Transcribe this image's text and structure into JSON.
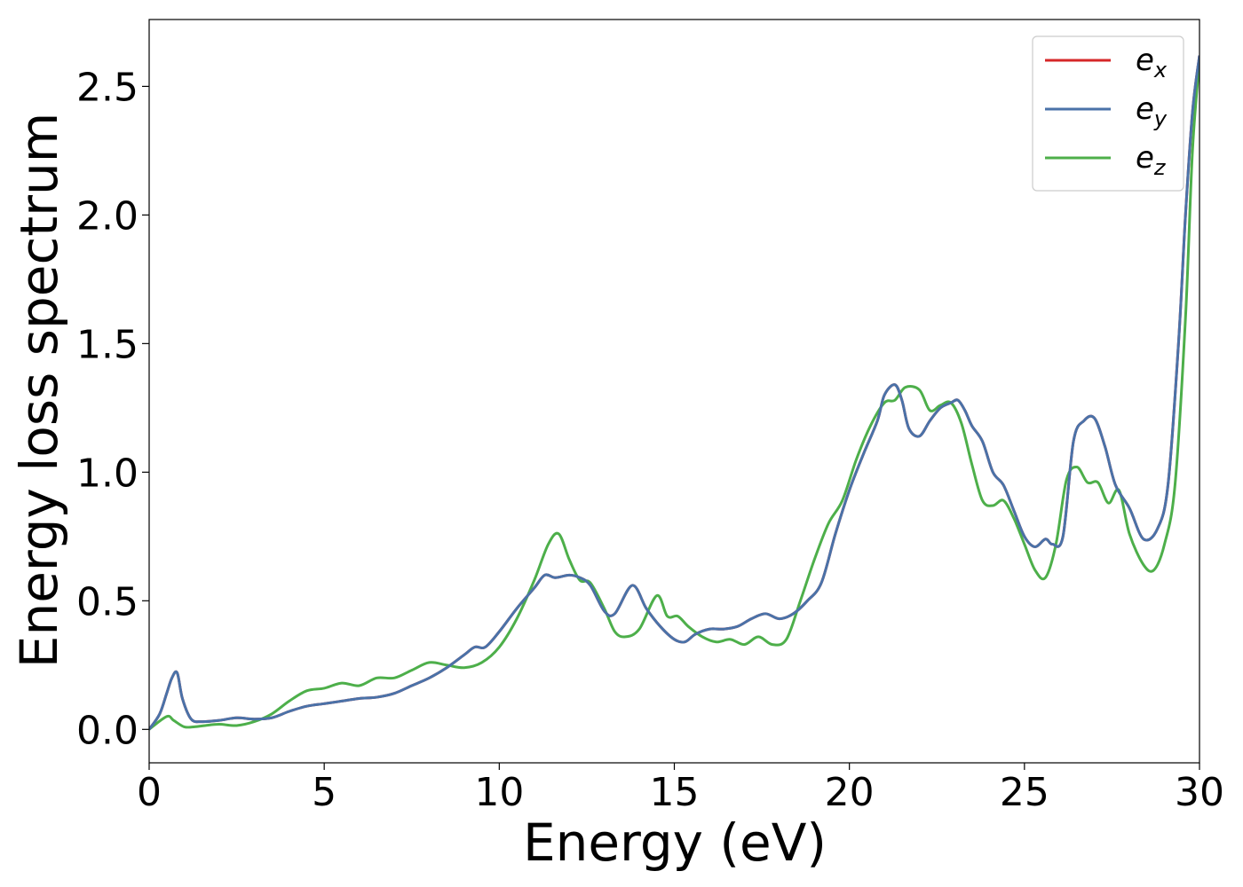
{
  "chart_data": {
    "type": "line",
    "xlabel": "Energy (eV)",
    "ylabel": "Energy loss spectrum",
    "xlim": [
      0,
      30
    ],
    "ylim": [
      -0.13,
      2.76
    ],
    "xticks": [
      0,
      5,
      10,
      15,
      20,
      25,
      30
    ],
    "xtick_labels": [
      "0",
      "5",
      "10",
      "15",
      "20",
      "25",
      "30"
    ],
    "yticks": [
      0.0,
      0.5,
      1.0,
      1.5,
      2.0,
      2.5
    ],
    "ytick_labels": [
      "0.0",
      "0.5",
      "1.0",
      "1.5",
      "2.0",
      "2.5"
    ],
    "grid": false,
    "legend_position": "top-right",
    "series": [
      {
        "name": "e_x",
        "legend_main": "e",
        "legend_sub": "x",
        "color": "#d62728",
        "x": [
          0,
          0.3,
          0.5,
          0.65,
          0.8,
          0.95,
          1.2,
          1.5,
          2,
          2.5,
          3,
          3.5,
          4,
          4.5,
          5,
          5.5,
          6,
          6.5,
          7,
          7.5,
          8,
          8.5,
          9,
          9.3,
          9.6,
          10,
          10.5,
          11,
          11.3,
          11.6,
          12,
          12.3,
          12.6,
          13,
          13.3,
          13.8,
          14.2,
          14.6,
          15,
          15.3,
          15.6,
          16,
          16.4,
          16.8,
          17.2,
          17.6,
          18,
          18.4,
          18.8,
          19.2,
          19.6,
          20,
          20.4,
          20.8,
          21,
          21.3,
          21.5,
          21.7,
          22,
          22.3,
          22.6,
          22.9,
          23.1,
          23.3,
          23.5,
          23.8,
          24.1,
          24.4,
          24.7,
          25,
          25.3,
          25.6,
          25.8,
          26.1,
          26.4,
          26.7,
          27,
          27.3,
          27.6,
          28,
          28.4,
          28.8,
          29.1,
          29.4,
          29.6,
          29.8,
          30
        ],
        "values": [
          0.0,
          0.06,
          0.14,
          0.2,
          0.22,
          0.12,
          0.04,
          0.03,
          0.035,
          0.045,
          0.04,
          0.045,
          0.07,
          0.09,
          0.1,
          0.11,
          0.12,
          0.125,
          0.14,
          0.17,
          0.2,
          0.24,
          0.29,
          0.32,
          0.32,
          0.38,
          0.47,
          0.55,
          0.6,
          0.59,
          0.6,
          0.59,
          0.56,
          0.46,
          0.45,
          0.56,
          0.47,
          0.4,
          0.35,
          0.34,
          0.37,
          0.39,
          0.39,
          0.4,
          0.43,
          0.45,
          0.43,
          0.45,
          0.5,
          0.57,
          0.76,
          0.93,
          1.07,
          1.2,
          1.3,
          1.34,
          1.28,
          1.17,
          1.14,
          1.2,
          1.25,
          1.27,
          1.28,
          1.24,
          1.18,
          1.12,
          1.0,
          0.95,
          0.85,
          0.75,
          0.71,
          0.74,
          0.72,
          0.75,
          1.12,
          1.2,
          1.21,
          1.1,
          0.95,
          0.86,
          0.74,
          0.78,
          0.95,
          1.5,
          2.0,
          2.4,
          2.62
        ]
      },
      {
        "name": "e_y",
        "legend_main": "e",
        "legend_sub": "y",
        "color": "#4a72a8",
        "x": [
          0,
          0.3,
          0.5,
          0.65,
          0.8,
          0.95,
          1.2,
          1.5,
          2,
          2.5,
          3,
          3.5,
          4,
          4.5,
          5,
          5.5,
          6,
          6.5,
          7,
          7.5,
          8,
          8.5,
          9,
          9.3,
          9.6,
          10,
          10.5,
          11,
          11.3,
          11.6,
          12,
          12.3,
          12.6,
          13,
          13.3,
          13.8,
          14.2,
          14.6,
          15,
          15.3,
          15.6,
          16,
          16.4,
          16.8,
          17.2,
          17.6,
          18,
          18.4,
          18.8,
          19.2,
          19.6,
          20,
          20.4,
          20.8,
          21,
          21.3,
          21.5,
          21.7,
          22,
          22.3,
          22.6,
          22.9,
          23.1,
          23.3,
          23.5,
          23.8,
          24.1,
          24.4,
          24.7,
          25,
          25.3,
          25.6,
          25.8,
          26.1,
          26.4,
          26.7,
          27,
          27.3,
          27.6,
          28,
          28.4,
          28.8,
          29.1,
          29.4,
          29.6,
          29.8,
          30
        ],
        "values": [
          0.0,
          0.06,
          0.14,
          0.2,
          0.22,
          0.12,
          0.04,
          0.03,
          0.035,
          0.045,
          0.04,
          0.045,
          0.07,
          0.09,
          0.1,
          0.11,
          0.12,
          0.125,
          0.14,
          0.17,
          0.2,
          0.24,
          0.29,
          0.32,
          0.32,
          0.38,
          0.47,
          0.55,
          0.6,
          0.59,
          0.6,
          0.59,
          0.56,
          0.46,
          0.45,
          0.56,
          0.47,
          0.4,
          0.35,
          0.34,
          0.37,
          0.39,
          0.39,
          0.4,
          0.43,
          0.45,
          0.43,
          0.45,
          0.5,
          0.57,
          0.76,
          0.93,
          1.07,
          1.2,
          1.3,
          1.34,
          1.28,
          1.17,
          1.14,
          1.2,
          1.25,
          1.27,
          1.28,
          1.24,
          1.18,
          1.12,
          1.0,
          0.95,
          0.85,
          0.75,
          0.71,
          0.74,
          0.72,
          0.75,
          1.12,
          1.2,
          1.21,
          1.1,
          0.95,
          0.86,
          0.74,
          0.78,
          0.95,
          1.5,
          2.0,
          2.4,
          2.62
        ]
      },
      {
        "name": "e_z",
        "legend_main": "e",
        "legend_sub": "z",
        "color": "#4daf4a",
        "x": [
          0,
          0.5,
          0.7,
          1.0,
          1.3,
          1.6,
          2.0,
          2.5,
          3,
          3.5,
          4,
          4.5,
          5,
          5.5,
          6,
          6.5,
          7,
          7.5,
          8,
          8.5,
          9,
          9.5,
          10,
          10.5,
          11,
          11.4,
          11.7,
          12,
          12.3,
          12.6,
          13,
          13.3,
          13.6,
          14.0,
          14.5,
          14.8,
          15.1,
          15.4,
          15.8,
          16.2,
          16.6,
          17,
          17.4,
          17.8,
          18.2,
          18.6,
          19,
          19.4,
          19.8,
          20.2,
          20.6,
          21,
          21.3,
          21.6,
          22,
          22.3,
          22.6,
          22.9,
          23.2,
          23.5,
          23.8,
          24.1,
          24.4,
          24.7,
          25,
          25.3,
          25.6,
          25.9,
          26.2,
          26.5,
          26.8,
          27.1,
          27.4,
          27.7,
          28,
          28.4,
          28.7,
          29,
          29.3,
          29.6,
          29.8,
          30
        ],
        "values": [
          0.0,
          0.05,
          0.035,
          0.01,
          0.01,
          0.015,
          0.02,
          0.015,
          0.03,
          0.06,
          0.11,
          0.15,
          0.16,
          0.18,
          0.17,
          0.2,
          0.2,
          0.23,
          0.26,
          0.25,
          0.24,
          0.26,
          0.32,
          0.43,
          0.58,
          0.72,
          0.76,
          0.66,
          0.58,
          0.57,
          0.47,
          0.38,
          0.36,
          0.39,
          0.52,
          0.44,
          0.44,
          0.4,
          0.36,
          0.34,
          0.35,
          0.33,
          0.36,
          0.33,
          0.35,
          0.5,
          0.66,
          0.8,
          0.89,
          1.05,
          1.18,
          1.27,
          1.28,
          1.33,
          1.32,
          1.24,
          1.26,
          1.27,
          1.19,
          1.03,
          0.89,
          0.87,
          0.89,
          0.82,
          0.72,
          0.62,
          0.59,
          0.72,
          0.97,
          1.02,
          0.96,
          0.96,
          0.88,
          0.93,
          0.76,
          0.64,
          0.62,
          0.72,
          0.95,
          1.6,
          2.25,
          2.6
        ]
      }
    ]
  }
}
